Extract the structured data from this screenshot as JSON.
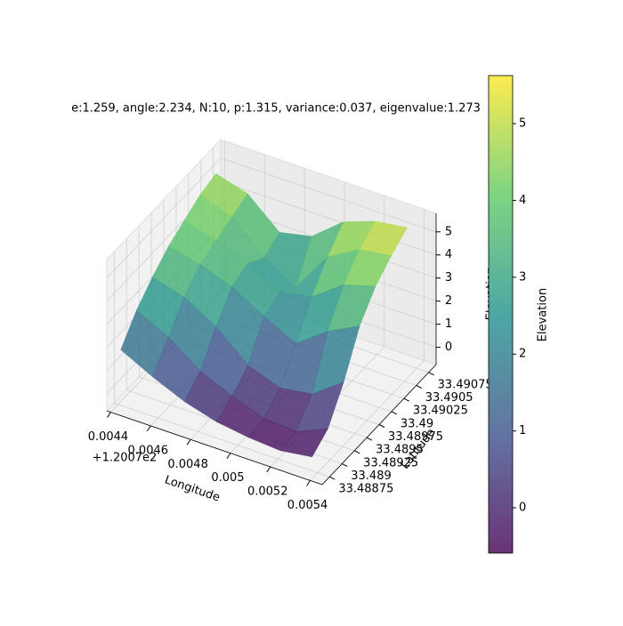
{
  "chart_data": {
    "type": "surface3d",
    "title": "e:1.259, angle:2.234, N:10, p:1.315, variance:0.037, eigenvalue:1.273",
    "xlabel": "Longitude",
    "ylabel": "Latitude",
    "zlabel": "Elevation",
    "x_offset_text": "+1.2007e2",
    "x": [
      0.0044,
      0.00456,
      0.00472,
      0.00488,
      0.00504,
      0.0052,
      0.00536
    ],
    "y": [
      33.4888,
      33.48912,
      33.48944,
      33.48976,
      33.49008,
      33.4904,
      33.49072
    ],
    "z": [
      [
        1.5,
        2.5,
        3.2,
        3.8,
        4.2,
        4.6,
        4.8
      ],
      [
        0.8,
        1.8,
        2.8,
        3.5,
        3.8,
        4.1,
        4.4
      ],
      [
        0.2,
        0.8,
        2.0,
        3.0,
        3.3,
        2.8,
        3.2
      ],
      [
        -0.2,
        0.2,
        0.8,
        2.2,
        2.5,
        2.0,
        3.5
      ],
      [
        -0.4,
        -0.3,
        0.3,
        1.5,
        2.8,
        3.8,
        4.6
      ],
      [
        -0.5,
        -0.4,
        0.5,
        2.5,
        3.8,
        4.6,
        5.1
      ],
      [
        -0.3,
        0.2,
        1.5,
        3.2,
        4.2,
        4.8,
        5.3
      ]
    ],
    "xlim": [
      0.00438,
      0.00546
    ],
    "ylim": [
      33.4886,
      33.4909
    ],
    "zlim": [
      -0.75,
      5.8
    ],
    "xticks": [
      0.0044,
      0.0046,
      0.0048,
      0.005,
      0.0052,
      0.0054
    ],
    "yticks": [
      33.48875,
      33.489,
      33.48925,
      33.4895,
      33.48975,
      33.49,
      33.49025,
      33.4905,
      33.49075
    ],
    "zticks": [
      0,
      1,
      2,
      3,
      4,
      5
    ],
    "colormap": [
      "#440154",
      "#3b528b",
      "#21918c",
      "#5ec962",
      "#fde725"
    ],
    "alpha": 0.8,
    "grid": true,
    "colorbar": {
      "label": "Elevation",
      "lim": [
        -0.59,
        5.625
      ],
      "ticks": [
        0,
        1,
        2,
        3,
        4,
        5
      ]
    }
  }
}
